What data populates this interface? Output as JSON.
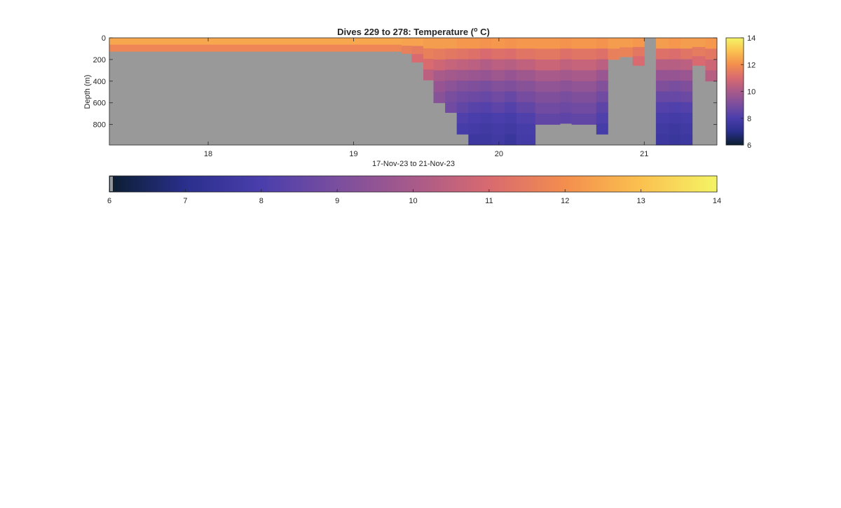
{
  "chart_data": {
    "type": "heatmap",
    "title": "Dives 229 to 278: Temperature (",
    "title_unit_symbol": "o",
    "title_unit_letter": " C)",
    "xlabel": "17-Nov-23 to 21-Nov-23",
    "ylabel": "Depth (m)",
    "xlim": [
      17.32,
      21.5
    ],
    "ylim": [
      0,
      990
    ],
    "x_ticks": [
      18,
      19,
      20,
      21
    ],
    "x_tick_labels": [
      "18",
      "19",
      "20",
      "21"
    ],
    "y_ticks": [
      0,
      200,
      400,
      600,
      800
    ],
    "y_tick_labels": [
      "0",
      "200",
      "400",
      "600",
      "800"
    ],
    "color_range": [
      6,
      14
    ],
    "colorbar_ticks": [
      6,
      8,
      10,
      12,
      14
    ],
    "colorbar_tick_labels": [
      "6",
      "8",
      "10",
      "12",
      "14"
    ],
    "horizontal_colorbar_ticks": [
      6,
      7,
      8,
      9,
      10,
      11,
      12,
      13,
      14
    ],
    "horizontal_colorbar_tick_labels": [
      "6",
      "7",
      "8",
      "9",
      "10",
      "11",
      "12",
      "13",
      "14"
    ],
    "no_data_color": "#999999",
    "colormap": [
      "#0a1e2f",
      "#2a2f8c",
      "#4a3eac",
      "#7a4e9e",
      "#a85a8a",
      "#d86a70",
      "#f38e4e",
      "#fbc14f",
      "#f4f465"
    ],
    "profiles": [
      {
        "t0": 17.32,
        "t1": 19.33,
        "max_depth": 125,
        "temps": [
          12.5,
          11.8
        ]
      },
      {
        "t0": 19.33,
        "t1": 19.4,
        "max_depth": 145,
        "temps": [
          12.4,
          11.6
        ]
      },
      {
        "t0": 19.4,
        "t1": 19.48,
        "max_depth": 225,
        "temps": [
          12.4,
          11.5,
          11.0
        ]
      },
      {
        "t0": 19.48,
        "t1": 19.55,
        "max_depth": 390,
        "temps": [
          12.3,
          11.6,
          11.0,
          10.4
        ]
      },
      {
        "t0": 19.55,
        "t1": 19.63,
        "max_depth": 600,
        "temps": [
          12.3,
          11.5,
          10.8,
          10.0,
          9.6,
          9.3
        ]
      },
      {
        "t0": 19.63,
        "t1": 19.71,
        "max_depth": 690,
        "temps": [
          12.3,
          11.4,
          10.6,
          9.9,
          9.4,
          9.0,
          8.8
        ]
      },
      {
        "t0": 19.71,
        "t1": 19.79,
        "max_depth": 890,
        "temps": [
          12.2,
          11.3,
          10.5,
          9.8,
          9.2,
          8.8,
          8.5,
          8.1,
          7.9
        ]
      },
      {
        "t0": 19.79,
        "t1": 19.87,
        "max_depth": 990,
        "temps": [
          12.2,
          11.2,
          10.4,
          9.7,
          9.1,
          8.7,
          8.3,
          8.0,
          7.8,
          7.6
        ]
      },
      {
        "t0": 19.87,
        "t1": 19.95,
        "max_depth": 990,
        "temps": [
          12.1,
          11.0,
          10.2,
          9.6,
          9.0,
          8.6,
          8.2,
          7.9,
          7.7,
          7.6
        ]
      },
      {
        "t0": 19.95,
        "t1": 20.04,
        "max_depth": 990,
        "temps": [
          12.2,
          11.2,
          10.4,
          9.8,
          9.2,
          8.8,
          8.4,
          8.0,
          7.8,
          7.7
        ]
      },
      {
        "t0": 20.04,
        "t1": 20.12,
        "max_depth": 990,
        "temps": [
          12.1,
          11.1,
          10.3,
          9.6,
          9.1,
          8.6,
          8.2,
          7.9,
          7.7,
          7.5
        ]
      },
      {
        "t0": 20.12,
        "t1": 20.25,
        "max_depth": 990,
        "temps": [
          12.2,
          11.3,
          10.5,
          9.8,
          9.3,
          8.9,
          8.5,
          8.1,
          7.9,
          7.8
        ]
      },
      {
        "t0": 20.25,
        "t1": 20.42,
        "max_depth": 800,
        "temps": [
          12.2,
          11.4,
          10.7,
          10.0,
          9.5,
          9.1,
          8.8,
          8.5
        ]
      },
      {
        "t0": 20.42,
        "t1": 20.5,
        "max_depth": 790,
        "temps": [
          12.1,
          11.2,
          10.5,
          9.9,
          9.4,
          9.0,
          8.7,
          8.4
        ]
      },
      {
        "t0": 20.5,
        "t1": 20.67,
        "max_depth": 800,
        "temps": [
          12.2,
          11.3,
          10.6,
          10.0,
          9.5,
          9.1,
          8.8,
          8.5
        ]
      },
      {
        "t0": 20.67,
        "t1": 20.75,
        "max_depth": 890,
        "temps": [
          12.1,
          11.2,
          10.4,
          9.7,
          9.2,
          8.8,
          8.4,
          8.1,
          7.9
        ]
      },
      {
        "t0": 20.75,
        "t1": 20.83,
        "max_depth": 200,
        "temps": [
          12.3,
          11.6
        ]
      },
      {
        "t0": 20.83,
        "t1": 20.92,
        "max_depth": 175,
        "temps": [
          12.3,
          11.7
        ]
      },
      {
        "t0": 20.92,
        "t1": 21.0,
        "max_depth": 255,
        "temps": [
          12.2,
          11.4,
          11.0
        ]
      },
      {
        "t0": 21.0,
        "t1": 21.08,
        "max_depth": 0,
        "temps": []
      },
      {
        "t0": 21.08,
        "t1": 21.17,
        "max_depth": 990,
        "temps": [
          12.3,
          11.2,
          10.3,
          9.6,
          9.1,
          8.6,
          8.2,
          7.9,
          7.7,
          7.6
        ]
      },
      {
        "t0": 21.17,
        "t1": 21.25,
        "max_depth": 990,
        "temps": [
          12.2,
          11.1,
          10.3,
          9.6,
          9.0,
          8.6,
          8.1,
          7.8,
          7.6,
          7.5
        ]
      },
      {
        "t0": 21.25,
        "t1": 21.33,
        "max_depth": 990,
        "temps": [
          12.3,
          11.3,
          10.4,
          9.7,
          9.1,
          8.7,
          8.2,
          7.9,
          7.7,
          7.6
        ]
      },
      {
        "t0": 21.33,
        "t1": 21.42,
        "max_depth": 255,
        "temps": [
          12.3,
          11.5,
          11.0
        ]
      },
      {
        "t0": 21.42,
        "t1": 21.5,
        "max_depth": 400,
        "temps": [
          12.2,
          11.4,
          10.8,
          10.3
        ]
      }
    ]
  }
}
